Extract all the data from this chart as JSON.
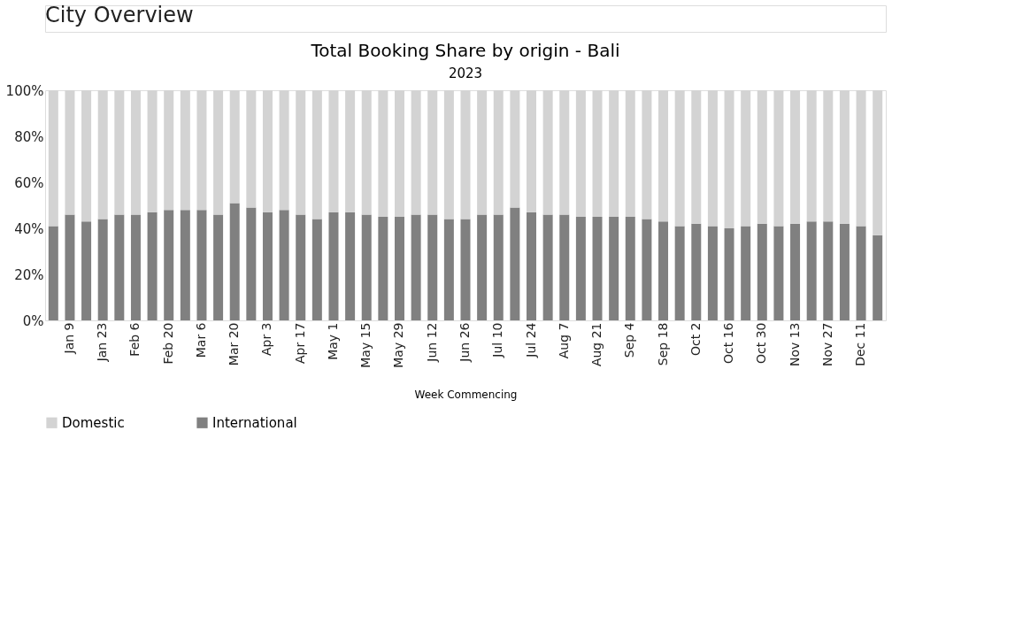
{
  "chart_data": {
    "type": "bar",
    "title": "Total Booking Share by origin - Bali",
    "subtitle": "2023",
    "xlabel": "Week Commencing",
    "annotations": [
      "City Overview"
    ],
    "categories": [
      null,
      "Jan 9",
      null,
      "Jan 23",
      null,
      "Feb 6",
      null,
      "Feb 20",
      null,
      "Mar 6",
      null,
      "Mar 20",
      null,
      "Apr 3",
      null,
      "Apr 17",
      null,
      "May 1",
      null,
      "May 15",
      null,
      "May 29",
      null,
      "Jun 12",
      null,
      "Jun 26",
      null,
      "Jul 10",
      null,
      "Jul 24",
      null,
      "Aug 7",
      null,
      "Aug 21",
      null,
      "Sep 4",
      null,
      "Sep 18",
      null,
      "Oct 2",
      null,
      "Oct 16",
      null,
      "Oct 30",
      null,
      "Nov 13",
      null,
      "Nov 27",
      null,
      "Dec 11",
      null
    ],
    "stacked": true,
    "series": [
      {
        "name": "International",
        "color": "#808080",
        "values": [
          41,
          46,
          43,
          44,
          46,
          46,
          47,
          48,
          48,
          48,
          46,
          51,
          49,
          47,
          48,
          46,
          44,
          47,
          47,
          46,
          45,
          45,
          46,
          46,
          44,
          44,
          46,
          46,
          49,
          47,
          46,
          46,
          45,
          45,
          45,
          45,
          44,
          43,
          41,
          42,
          41,
          40,
          41,
          42,
          41,
          42,
          43,
          43,
          42,
          41,
          37
        ]
      },
      {
        "name": "Domestic",
        "color": "#d3d3d3",
        "values": [
          59,
          54,
          57,
          56,
          54,
          54,
          53,
          52,
          52,
          52,
          54,
          49,
          51,
          53,
          52,
          54,
          56,
          53,
          53,
          54,
          55,
          55,
          54,
          54,
          56,
          56,
          54,
          54,
          51,
          53,
          54,
          54,
          55,
          55,
          55,
          55,
          56,
          57,
          59,
          58,
          59,
          60,
          59,
          58,
          59,
          58,
          57,
          57,
          58,
          59,
          63
        ]
      }
    ],
    "ylim": [
      0,
      100
    ],
    "yticks": [
      {
        "value": 0,
        "label": "0%"
      },
      {
        "value": 20,
        "label": "20%"
      },
      {
        "value": 40,
        "label": "40%"
      },
      {
        "value": 60,
        "label": "60%"
      },
      {
        "value": 80,
        "label": "80%"
      },
      {
        "value": 100,
        "label": "100%"
      }
    ],
    "grid": false,
    "legend": "bottom"
  }
}
